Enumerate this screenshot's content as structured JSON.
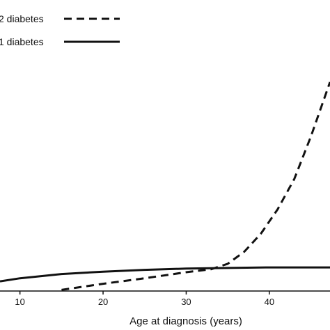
{
  "chart_data": {
    "type": "line",
    "xlabel": "Age at diagnosis (years)",
    "ylabel": "",
    "title": "",
    "x_ticks": [
      10,
      20,
      30,
      40
    ],
    "xlim": [
      7.6,
      47.3
    ],
    "ylim": [
      0,
      1
    ],
    "grid": false,
    "legend_position": "top-left",
    "series": [
      {
        "name": "2 diabetes",
        "style": "dashed",
        "color": "#111111",
        "x": [
          15,
          20,
          25,
          30,
          33,
          35,
          37,
          39,
          41,
          43,
          45,
          47.3
        ],
        "y": [
          0.002,
          0.012,
          0.021,
          0.031,
          0.036,
          0.045,
          0.065,
          0.095,
          0.135,
          0.185,
          0.255,
          0.345
        ]
      },
      {
        "name": "1 diabetes",
        "style": "solid",
        "color": "#111111",
        "x": [
          7.6,
          10,
          15,
          20,
          25,
          30,
          35,
          40,
          47.3
        ],
        "y": [
          0.016,
          0.021,
          0.028,
          0.032,
          0.035,
          0.037,
          0.038,
          0.039,
          0.039
        ]
      }
    ]
  }
}
